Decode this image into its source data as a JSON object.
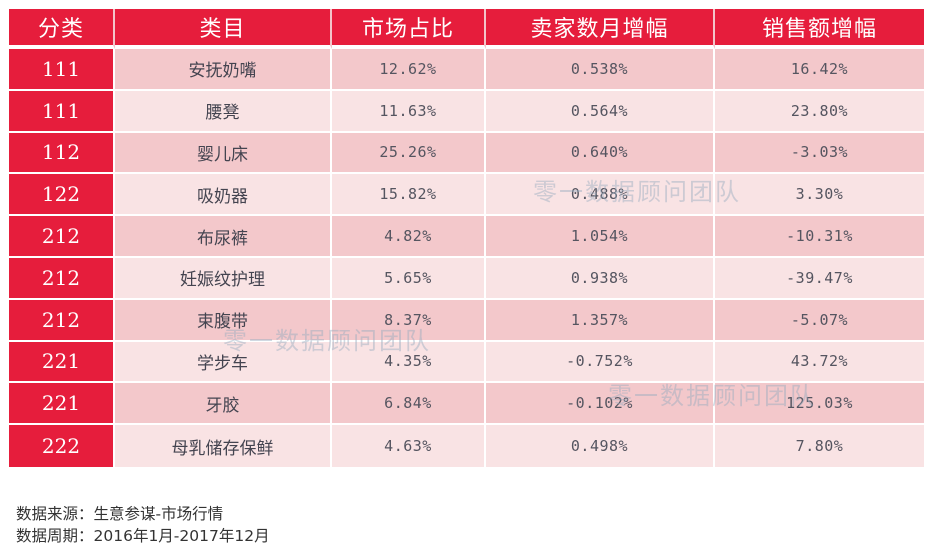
{
  "table": {
    "headers": [
      "分类",
      "类目",
      "市场占比",
      "卖家数月增幅",
      "销售额增幅"
    ],
    "rows": [
      {
        "code": "111",
        "name": "安抚奶嘴",
        "market_share": "12.62%",
        "seller_growth": "0.538%",
        "sales_growth": "16.42%"
      },
      {
        "code": "111",
        "name": "腰凳",
        "market_share": "11.63%",
        "seller_growth": "0.564%",
        "sales_growth": "23.80%"
      },
      {
        "code": "112",
        "name": "婴儿床",
        "market_share": "25.26%",
        "seller_growth": "0.640%",
        "sales_growth": "-3.03%"
      },
      {
        "code": "122",
        "name": "吸奶器",
        "market_share": "15.82%",
        "seller_growth": "0.488%",
        "sales_growth": "3.30%"
      },
      {
        "code": "212",
        "name": "布尿裤",
        "market_share": "4.82%",
        "seller_growth": "1.054%",
        "sales_growth": "-10.31%"
      },
      {
        "code": "212",
        "name": "妊娠纹护理",
        "market_share": "5.65%",
        "seller_growth": "0.938%",
        "sales_growth": "-39.47%"
      },
      {
        "code": "212",
        "name": "束腹带",
        "market_share": "8.37%",
        "seller_growth": "1.357%",
        "sales_growth": "-5.07%"
      },
      {
        "code": "221",
        "name": "学步车",
        "market_share": "4.35%",
        "seller_growth": "-0.752%",
        "sales_growth": "43.72%"
      },
      {
        "code": "221",
        "name": "牙胶",
        "market_share": "6.84%",
        "seller_growth": "-0.102%",
        "sales_growth": "125.03%"
      },
      {
        "code": "222",
        "name": "母乳储存保鲜",
        "market_share": "4.63%",
        "seller_growth": "0.498%",
        "sales_growth": "7.80%"
      }
    ]
  },
  "watermark": {
    "text": "零一数据顾问团队"
  },
  "footer": {
    "source": "数据来源：生意参谋-市场行情",
    "period": "数据周期：2016年1月-2017年12月"
  },
  "colors": {
    "header_red": "#e61d3c",
    "row_odd": "#f3c8cb",
    "row_even": "#f9e3e4",
    "text_gray": "#555560"
  }
}
